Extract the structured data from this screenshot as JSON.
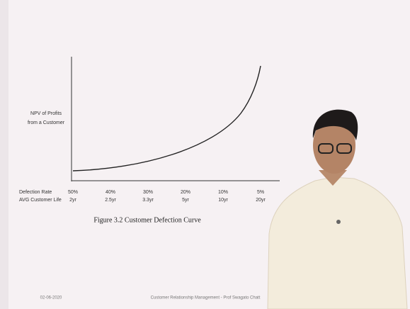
{
  "slide": {
    "figure": {
      "y_axis_label": [
        "NPV of Profits",
        "from a Customer"
      ],
      "rows": [
        {
          "label": "Defection Rate",
          "values": [
            "50%",
            "40%",
            "30%",
            "20%",
            "10%",
            "5%"
          ]
        },
        {
          "label": "AVG Customer Life",
          "values": [
            "2yr",
            "2.5yr",
            "3.3yr",
            "5yr",
            "10yr",
            "20yr"
          ]
        }
      ],
      "caption": "Figure 3.2  Customer Defection Curve"
    },
    "footer": {
      "date": "02-06-2020",
      "text": "Customer Relationship Management - Prof Swagato Chatt"
    }
  }
}
